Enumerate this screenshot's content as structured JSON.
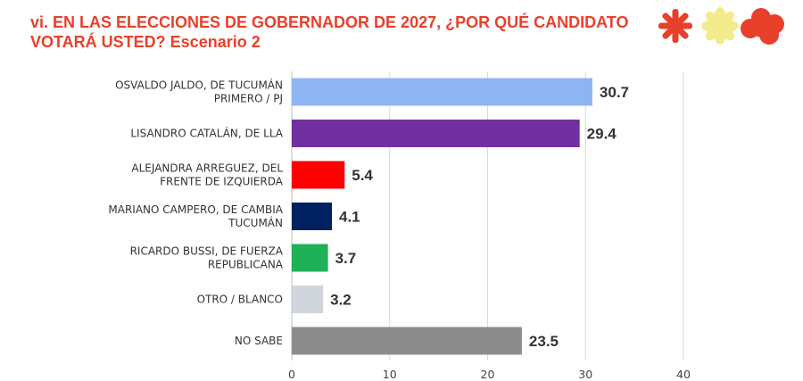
{
  "title_line1": "vi. EN LAS ELECCIONES DE GOBERNADOR DE 2027, ¿POR QUÉ CANDIDATO",
  "title_line2": "VOTARÁ USTED? Escenario 2",
  "colors": {
    "title": "#e8402b",
    "logo_red": "#e8402b",
    "logo_yellow": "#f3ea8c"
  },
  "logo_icons": [
    "asterisk-icon",
    "flower-icon",
    "cloud-blob-icon"
  ],
  "chart_data": {
    "type": "bar",
    "orientation": "horizontal",
    "categories": [
      [
        "OSVALDO JALDO, DE TUCUMÁN",
        "PRIMERO / PJ"
      ],
      [
        "LISANDRO CATALÁN, DE LLA"
      ],
      [
        "ALEJANDRA ARREGUEZ,  DEL",
        "FRENTE DE IZQUIERDA"
      ],
      [
        "MARIANO CAMPERO, DE CAMBIA",
        "TUCUMÁN"
      ],
      [
        "RICARDO BUSSI, DE FUERZA",
        "REPUBLICANA"
      ],
      [
        "OTRO / BLANCO"
      ],
      [
        "NO SABE"
      ]
    ],
    "values": [
      30.7,
      29.4,
      5.4,
      4.1,
      3.7,
      3.2,
      23.5
    ],
    "value_labels": [
      "30.7",
      "29.4",
      "5.4",
      "4.1",
      "3.7",
      "3.2",
      "23.5"
    ],
    "bar_colors": [
      "#8fb4f4",
      "#7030a0",
      "#fe0000",
      "#002060",
      "#1fb157",
      "#cfd5da",
      "#8c8c8c"
    ],
    "xlim": [
      0,
      40
    ],
    "xticks": [
      "0",
      "10",
      "20",
      "30",
      "40"
    ],
    "grid": "vertical",
    "legend": "none"
  }
}
